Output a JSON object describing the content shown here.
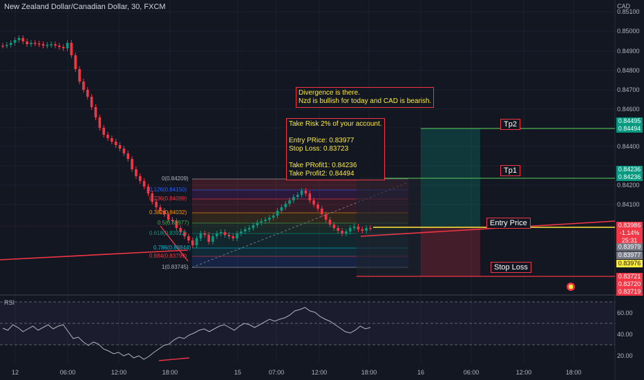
{
  "header": {
    "title": "New Zealand Dollar/Canadian Dollar, 30, FXCM",
    "currency": "CAD"
  },
  "notes": {
    "divergence": "Divergence is there.\nNzd is bullish for today and CAD is bearish.",
    "plan": "Take Risk 2% of your account.\n\nEntry PRice: 0.83977\nStop Loss: 0.83723\n\nTake PRofit1: 0.84236\nTake Profit2: 0.84494"
  },
  "tags": {
    "tp2": "Tp2",
    "tp1": "Tp1",
    "entry": "Entry Price",
    "stop": "Stop Loss"
  },
  "fib": [
    {
      "label": "0(0.84209)",
      "color": "#b2b5be"
    },
    {
      "label": "0.126(0.84150)",
      "color": "#2962ff"
    },
    {
      "label": "0.236(0.84099)",
      "color": "#f23645"
    },
    {
      "label": "0.382(0.84032)",
      "color": "#ff9800"
    },
    {
      "label": "0.5(0.83977)",
      "color": "#4caf50"
    },
    {
      "label": "0.618(0.83922)",
      "color": "#089981"
    },
    {
      "label": "0.786(0.83844)",
      "color": "#00bcd4"
    },
    {
      "label": "0.884(0.83799)",
      "color": "#f23645"
    },
    {
      "label": "1(0.83745)",
      "color": "#b2b5be"
    }
  ],
  "price_axis": [
    "0.85100",
    "0.85000",
    "0.84900",
    "0.84800",
    "0.84700",
    "0.84600",
    "0.84400",
    "0.84200",
    "0.84100"
  ],
  "price_labels": [
    {
      "text": "0.84495",
      "bg": "#089981",
      "fg": "#ffffff"
    },
    {
      "text": "0.84494",
      "bg": "#089981",
      "fg": "#ffffff"
    },
    {
      "text": "0.84236",
      "bg": "#089981",
      "fg": "#ffffff"
    },
    {
      "text": "0.84236",
      "bg": "#089981",
      "fg": "#ffffff"
    },
    {
      "text": "0.83986",
      "bg": "#f23645",
      "fg": "#ffffff"
    },
    {
      "text": "-1.14%",
      "bg": "#f23645",
      "fg": "#ffffff"
    },
    {
      "text": "25:31",
      "bg": "#f23645",
      "fg": "#ffffff"
    },
    {
      "text": "0.83979",
      "bg": "#787b86",
      "fg": "#ffffff"
    },
    {
      "text": "0.83977",
      "bg": "#787b86",
      "fg": "#ffffff"
    },
    {
      "text": "0.83976",
      "bg": "#ffeb3b",
      "fg": "#131722"
    },
    {
      "text": "0.83721",
      "bg": "#f23645",
      "fg": "#ffffff"
    },
    {
      "text": "0.83720",
      "bg": "#f23645",
      "fg": "#ffffff"
    },
    {
      "text": "0.83719",
      "bg": "#f23645",
      "fg": "#ffffff"
    }
  ],
  "rsi": {
    "label": "RSI",
    "axis": [
      "60.00",
      "40.00",
      "20.00"
    ]
  },
  "time_axis": [
    "12",
    "06:00",
    "12:00",
    "18:00",
    "15",
    "07:00",
    "12:00",
    "18:00",
    "16",
    "06:00",
    "12:00",
    "18:00"
  ],
  "colors": {
    "up": "#089981",
    "down": "#f23645",
    "entry": "#ffeb3b"
  }
}
